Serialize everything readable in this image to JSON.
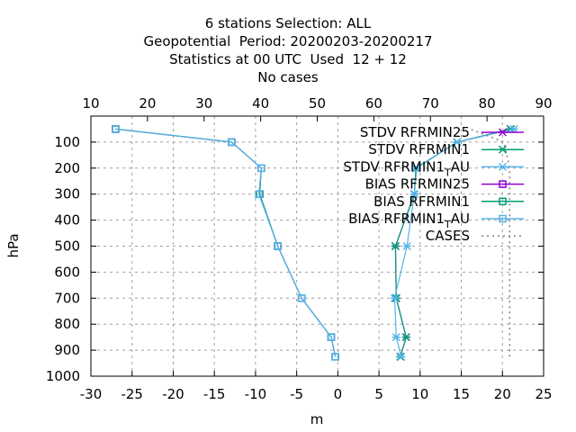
{
  "title_lines": [
    "6 stations Selection: ALL",
    "Geopotential  Period: 20200203-20200217",
    "Statistics at 00 UTC  Used  12 + 12",
    "No cases"
  ],
  "chart_data": {
    "type": "line",
    "xlabel": "m",
    "ylabel": "hPa",
    "xlim": [
      -30,
      25
    ],
    "x2lim": [
      10,
      90
    ],
    "ylim": [
      1000,
      0
    ],
    "xticks": [
      -30,
      -25,
      -20,
      -15,
      -10,
      -5,
      0,
      5,
      10,
      15,
      20,
      25
    ],
    "x2ticks": [
      10,
      20,
      30,
      40,
      50,
      60,
      70,
      80,
      90
    ],
    "yticks": [
      100,
      200,
      300,
      400,
      500,
      600,
      700,
      800,
      900,
      1000
    ],
    "grid": true,
    "legend_position": "top-right",
    "series": [
      {
        "name": "STDV RFRMIN25",
        "color": "#9400d3",
        "marker": "asterisk",
        "x": [
          7.6,
          8.3,
          7.1,
          7.0,
          9.3,
          9.5,
          14.5,
          21.0
        ],
        "y": [
          925,
          850,
          700,
          500,
          300,
          200,
          100,
          50
        ]
      },
      {
        "name": "STDV RFRMIN1",
        "color": "#009e73",
        "marker": "asterisk",
        "x": [
          7.6,
          8.3,
          7.1,
          7.0,
          9.3,
          9.5,
          14.5,
          21.0
        ],
        "y": [
          925,
          850,
          700,
          500,
          300,
          200,
          100,
          50
        ]
      },
      {
        "name": "STDV RFRMIN1_TAU",
        "color": "#56b4e9",
        "marker": "asterisk",
        "x": [
          7.7,
          7.1,
          6.9,
          8.4,
          9.3,
          9.6,
          14.5,
          21.4
        ],
        "y": [
          925,
          850,
          700,
          500,
          300,
          200,
          100,
          50
        ]
      },
      {
        "name": "BIAS RFRMIN25",
        "color": "#9400d3",
        "marker": "square",
        "x": [
          -0.3,
          -0.8,
          -4.4,
          -7.3,
          -9.5,
          -9.3,
          -12.9,
          -27.0
        ],
        "y": [
          925,
          850,
          700,
          500,
          300,
          200,
          100,
          50
        ]
      },
      {
        "name": "BIAS RFRMIN1",
        "color": "#009e73",
        "marker": "square",
        "x": [
          -0.3,
          -0.8,
          -4.4,
          -7.3,
          -9.5,
          -9.3,
          -12.9,
          -27.0
        ],
        "y": [
          925,
          850,
          700,
          500,
          300,
          200,
          100,
          50
        ]
      },
      {
        "name": "BIAS RFRMIN1_TAU",
        "color": "#56b4e9",
        "marker": "square",
        "x": [
          -0.3,
          -0.8,
          -4.4,
          -7.3,
          -9.6,
          -9.3,
          -12.9,
          -27.0
        ],
        "y": [
          925,
          850,
          700,
          500,
          300,
          200,
          100,
          50
        ]
      },
      {
        "name": "CASES",
        "color": "#808080",
        "marker": "none",
        "dashed": true,
        "axis": "x2",
        "x": [
          84,
          84,
          84,
          84,
          84,
          84,
          83,
          77
        ],
        "y": [
          925,
          850,
          700,
          500,
          300,
          200,
          100,
          50
        ]
      }
    ],
    "legend_entries": [
      {
        "main": "STDV RFRMIN25",
        "sub": ""
      },
      {
        "main": "STDV RFRMIN1",
        "sub": ""
      },
      {
        "main": "STDV RFRMIN1",
        "sub": "T",
        "tail": "AU"
      },
      {
        "main": "BIAS RFRMIN25",
        "sub": ""
      },
      {
        "main": "BIAS RFRMIN1",
        "sub": ""
      },
      {
        "main": "BIAS RFRMIN1",
        "sub": "T",
        "tail": "AU"
      },
      {
        "main": "CASES",
        "sub": ""
      }
    ]
  }
}
